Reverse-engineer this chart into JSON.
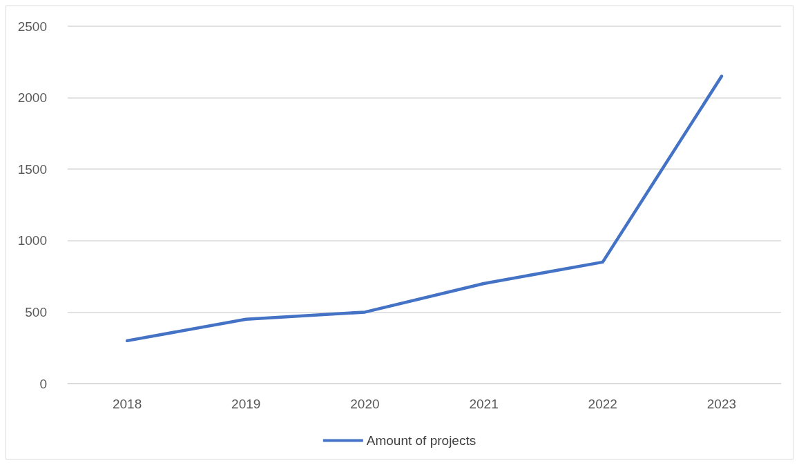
{
  "chart_data": {
    "type": "line",
    "categories": [
      "2018",
      "2019",
      "2020",
      "2021",
      "2022",
      "2023"
    ],
    "series": [
      {
        "name": "Amount of projects",
        "color": "#4472c4",
        "values": [
          300,
          450,
          500,
          700,
          850,
          2150
        ]
      }
    ],
    "ylim": [
      0,
      2500
    ],
    "yticks": [
      0,
      500,
      1000,
      1500,
      2000,
      2500
    ],
    "grid": "y",
    "legend": "bottom",
    "marker": "none",
    "line_style": "solid"
  }
}
